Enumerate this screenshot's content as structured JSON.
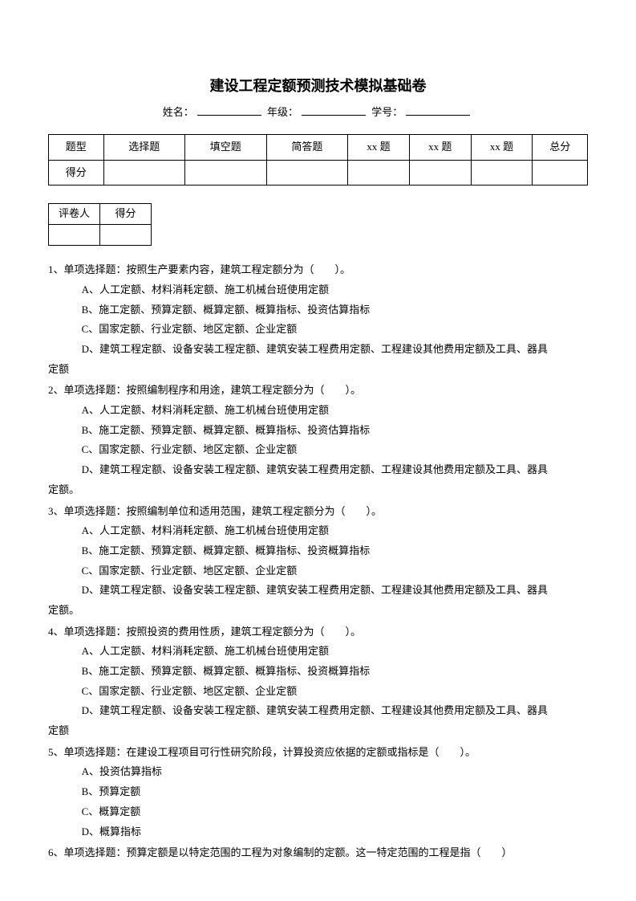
{
  "title": "建设工程定额预测技术模拟基础卷",
  "info": {
    "name_label": "姓名：",
    "grade_label": " 年级：",
    "id_label": " 学号："
  },
  "score_table": {
    "headers": [
      "题型",
      "选择题",
      "填空题",
      "简答题",
      "xx 题",
      "xx 题",
      "xx 题",
      "总分"
    ],
    "row2_first": "得分"
  },
  "grader_table": {
    "h1": "评卷人",
    "h2": "得分"
  },
  "questions": [
    {
      "stem": "1、单项选择题：按照生产要素内容，建筑工程定额分为（　　）。",
      "opts": [
        "A、人工定额、材料消耗定额、施工机械台班使用定额",
        "B、施工定额、预算定额、概算定额、概算指标、投资估算指标",
        "C、国家定额、行业定额、地区定额、企业定额",
        "D、建筑工程定额、设备安装工程定额、建筑安装工程费用定额、工程建设其他费用定额及工具、器具"
      ],
      "tail": "定额"
    },
    {
      "stem": "2、单项选择题：按照编制程序和用途，建筑工程定额分为（　　）。",
      "opts": [
        "A、人工定额、材料消耗定额、施工机械台班使用定额",
        "B、施工定额、预算定额、概算定额、概算指标、投资估算指标",
        "C、国家定额、行业定额、地区定额、企业定额",
        "D、建筑工程定额、设备安装工程定额、建筑安装工程费用定额、工程建设其他费用定额及工具、器具"
      ],
      "tail": "定额。"
    },
    {
      "stem": "3、单项选择题：按照编制单位和适用范围，建筑工程定额分为（　　）。",
      "opts": [
        "A、人工定额、材料消耗定额、施工机械台班使用定额",
        "B、施工定额、预算定额、概算定额、概算指标、投资概算指标",
        "C、国家定额、行业定额、地区定额、企业定额",
        "D、建筑工程定额、设备安装工程定额、建筑安装工程费用定额、工程建设其他费用定额及工具、器具"
      ],
      "tail": "定额。"
    },
    {
      "stem": "4、单项选择题：按照投资的费用性质，建筑工程定额分为（　　）。",
      "opts": [
        "A、人工定额、材料消耗定额、施工机械台班使用定额",
        "B、施工定额、预算定额、概算定额、概算指标、投资概算指标",
        "C、国家定额、行业定额、地区定额、企业定额",
        "D、建筑工程定额、设备安装工程定额、建筑安装工程费用定额、工程建设其他费用定额及工具、器具"
      ],
      "tail": "定额"
    },
    {
      "stem": "5、单项选择题：在建设工程项目可行性研究阶段，计算投资应依据的定额或指标是（　　）。",
      "opts": [
        "A、投资估算指标",
        "B、预算定额",
        "C、概算定额",
        "D、概算指标"
      ],
      "tail": ""
    },
    {
      "stem": "6、单项选择题：预算定额是以特定范围的工程为对象编制的定额。这一特定范围的工程是指（　　）",
      "opts": [],
      "tail": ""
    }
  ]
}
